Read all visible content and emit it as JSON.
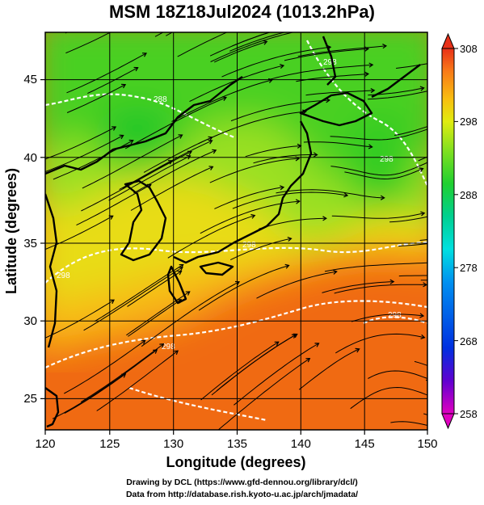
{
  "title": "MSM 18Z18Jul2024 (1013.2hPa)",
  "x_axis": {
    "label": "Longitude (degrees)",
    "ticks": [
      "120",
      "125",
      "130",
      "135",
      "140",
      "145",
      "150"
    ],
    "range": [
      120,
      150
    ]
  },
  "y_axis": {
    "label": "Latitude  (degrees)",
    "ticks": [
      "25",
      "30",
      "35",
      "40",
      "45"
    ],
    "range": [
      22.5,
      47.5
    ]
  },
  "colorbar": {
    "ticks": [
      "308",
      "298",
      "288",
      "278",
      "268",
      "258"
    ],
    "range": [
      258,
      308
    ],
    "colors": [
      "#e000c0",
      "#6000d0",
      "#0030e0",
      "#0090f0",
      "#00e0e0",
      "#00d090",
      "#20d030",
      "#80e020",
      "#e0ec10",
      "#f8c010",
      "#f87818",
      "#e83018"
    ]
  },
  "contour_labels": [
    "288",
    "298",
    "298",
    "298",
    "298",
    "298",
    "298"
  ],
  "credits": {
    "line1": "Drawing by DCL (https://www.gfd-dennou.org/library/dcl/)",
    "line2": "Data from http://database.rish.kyoto-u.ac.jp/arch/jmadata/"
  },
  "colors": {
    "warm": "#f06010",
    "mid": "#e8d818",
    "cool": "#40d020",
    "coast": "#000000",
    "contour": "#ffffff"
  }
}
